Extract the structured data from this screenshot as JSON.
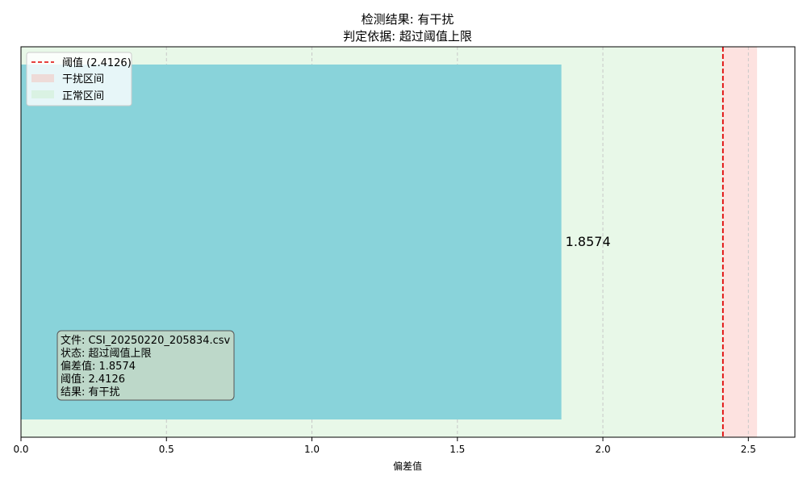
{
  "chart_data": {
    "type": "bar",
    "orientation": "horizontal",
    "title": "检测结果: 有干扰",
    "subtitle": "判定依据: 超过阈值上限",
    "xlabel": "偏差值",
    "ylabel": "",
    "xlim": [
      0,
      2.66
    ],
    "xticks": [
      0.0,
      0.5,
      1.0,
      1.5,
      2.0,
      2.5
    ],
    "xtick_labels": [
      "0.0",
      "0.5",
      "1.0",
      "1.5",
      "2.0",
      "2.5"
    ],
    "grid": "x-dashed",
    "bar": {
      "value": 1.8574,
      "label": "1.8574"
    },
    "threshold": {
      "value": 2.4126,
      "legend": "阈值 (2.4126)"
    },
    "bands": [
      {
        "name": "干扰区间",
        "from": 2.4126,
        "to": 2.53
      },
      {
        "name": "正常区间",
        "from": 0,
        "to": 2.4126
      }
    ],
    "legend": {
      "placement": "top-left",
      "entries": [
        "阈值 (2.4126)",
        "干扰区间",
        "正常区间"
      ]
    },
    "info_box": {
      "lines": [
        "文件: CSI_20250220_205834.csv",
        "状态: 超过阈值上限",
        "偏差值: 1.8574",
        "阈值: 2.4126",
        "结果: 有干扰"
      ]
    },
    "colors": {
      "bar": "#89d3da",
      "normal_band": "#e8f8e8",
      "interference_band": "#fde2e0",
      "threshold": "#e00000",
      "info_box_fill": "#c0d8c8",
      "info_box_edge": "#555555",
      "grid": "#c8c8c8"
    }
  }
}
